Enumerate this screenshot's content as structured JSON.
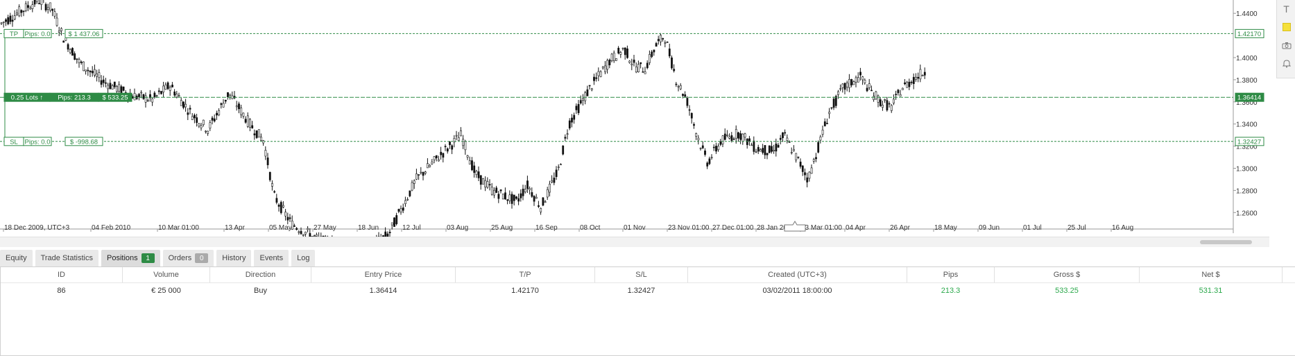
{
  "chart": {
    "price_labels": [
      "1.4400",
      "1.4000",
      "1.3800",
      "1.3600",
      "1.3400",
      "1.3200",
      "1.3000",
      "1.2800",
      "1.2600"
    ],
    "price_values": [
      1.44,
      1.4,
      1.38,
      1.36,
      1.34,
      1.32,
      1.3,
      1.28,
      1.26
    ],
    "date_labels": [
      "18 Dec 2009, UTC+3",
      "04 Feb 2010",
      "10 Mar 01:00",
      "13 Apr",
      "05 May",
      "27 May",
      "18 Jun",
      "12 Jul",
      "03 Aug",
      "25 Aug",
      "16 Sep",
      "08 Oct",
      "01 Nov",
      "23 Nov 01:00",
      "27 Dec 01:00",
      "28 Jan 2011",
      "03 Mar 01:00",
      "04 Apr",
      "26 Apr",
      "18 May",
      "09 Jun",
      "01 Jul",
      "25 Jul",
      "16 Aug"
    ],
    "tp": {
      "tag": "TP",
      "pips": "Pips: 0.0",
      "amount": "$ 1 437.06",
      "price": "1.42170",
      "value": 1.4217
    },
    "entry": {
      "lots": "0.25 Lots ↑",
      "pips": "Pips: 213.3",
      "amount": "$ 533.25",
      "price": "1.36414",
      "value": 1.36414
    },
    "sl": {
      "tag": "SL",
      "pips": "Pips: 0.0",
      "amount": "$ -998.68",
      "price": "1.32427",
      "value": 1.32427
    },
    "colors": {
      "line": "#2e8b45",
      "candle": "#111111",
      "grid": "#e6e6e6"
    }
  },
  "toolbar": {
    "icons": [
      "text-tool-icon",
      "note-icon",
      "camera-icon",
      "alert-bell-icon"
    ]
  },
  "tabs": [
    {
      "label": "Equity"
    },
    {
      "label": "Trade Statistics"
    },
    {
      "label": "Positions",
      "count": "1"
    },
    {
      "label": "Orders",
      "count": "0"
    },
    {
      "label": "History"
    },
    {
      "label": "Events"
    },
    {
      "label": "Log"
    }
  ],
  "positions": {
    "columns": [
      "ID",
      "Volume",
      "Direction",
      "Entry Price",
      "T/P",
      "S/L",
      "Created (UTC+3)",
      "Pips",
      "Gross $",
      "Net $"
    ],
    "rows": [
      [
        "86",
        "€ 25 000",
        "Buy",
        "1.36414",
        "1.42170",
        "1.32427",
        "03/02/2011 18:00:00",
        "213.3",
        "533.25",
        "531.31"
      ]
    ]
  }
}
